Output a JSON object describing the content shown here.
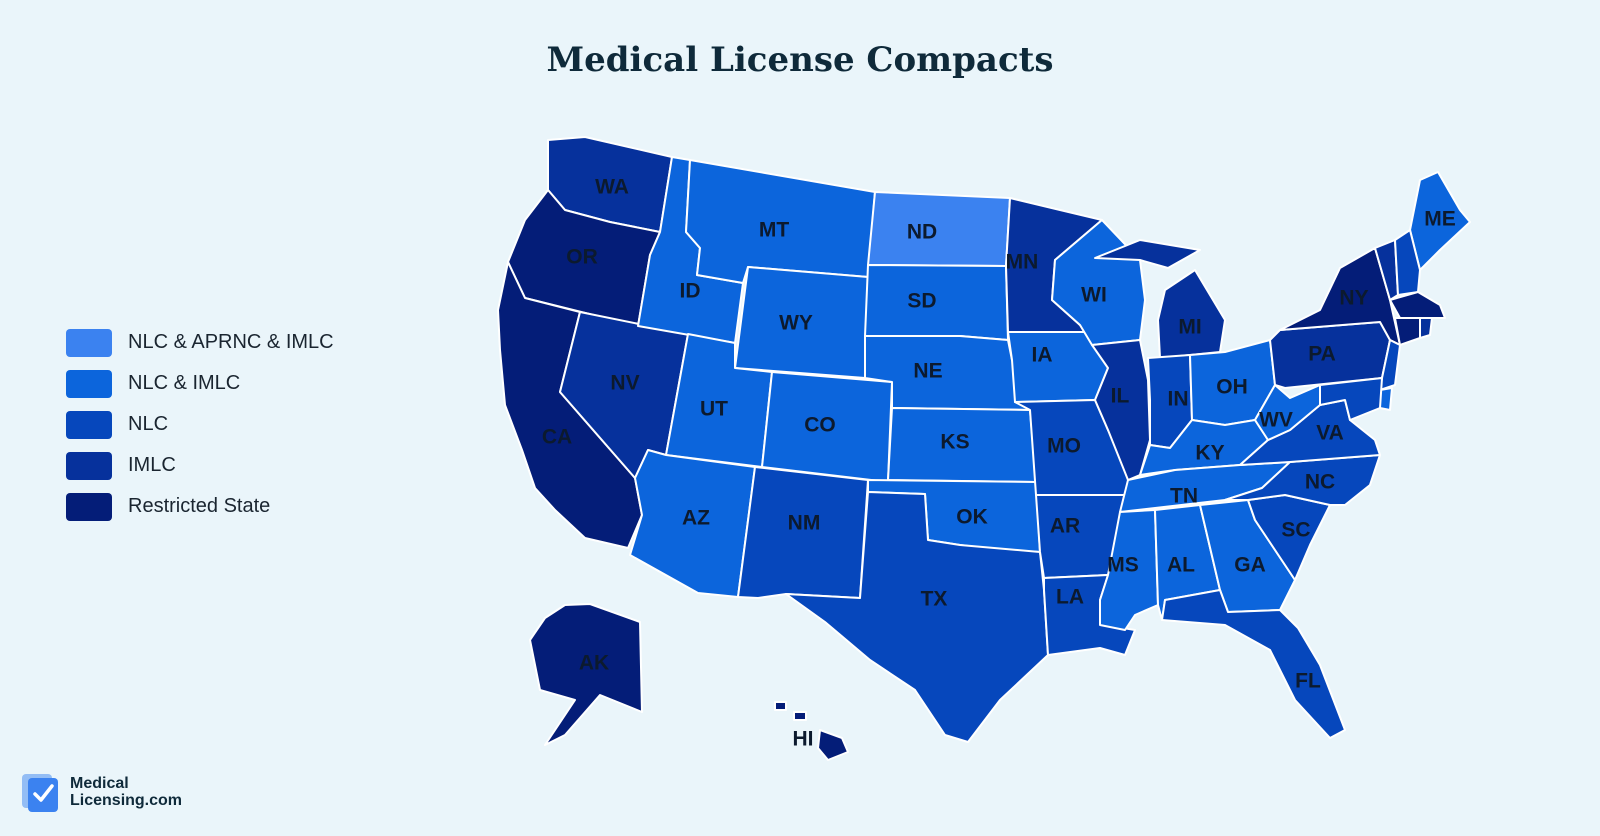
{
  "title": "Medical License Compacts",
  "legend": [
    {
      "label": "NLC & APRNC & IMLC",
      "color": "#3b82f0"
    },
    {
      "label": "NLC & IMLC",
      "color": "#0c65dc"
    },
    {
      "label": "NLC",
      "color": "#0647bc"
    },
    {
      "label": "IMLC",
      "color": "#06319c"
    },
    {
      "label": "Restricted State",
      "color": "#041d78"
    }
  ],
  "states": [
    {
      "code": "WA",
      "category": 3
    },
    {
      "code": "OR",
      "category": 4
    },
    {
      "code": "CA",
      "category": 4
    },
    {
      "code": "NV",
      "category": 3
    },
    {
      "code": "ID",
      "category": 1
    },
    {
      "code": "MT",
      "category": 1
    },
    {
      "code": "WY",
      "category": 1
    },
    {
      "code": "UT",
      "category": 1
    },
    {
      "code": "AZ",
      "category": 1
    },
    {
      "code": "CO",
      "category": 1
    },
    {
      "code": "NM",
      "category": 2
    },
    {
      "code": "ND",
      "category": 0
    },
    {
      "code": "SD",
      "category": 1
    },
    {
      "code": "NE",
      "category": 1
    },
    {
      "code": "KS",
      "category": 1
    },
    {
      "code": "OK",
      "category": 1
    },
    {
      "code": "TX",
      "category": 2
    },
    {
      "code": "MN",
      "category": 3
    },
    {
      "code": "IA",
      "category": 1
    },
    {
      "code": "MO",
      "category": 2
    },
    {
      "code": "AR",
      "category": 2
    },
    {
      "code": "LA",
      "category": 2
    },
    {
      "code": "WI",
      "category": 1
    },
    {
      "code": "IL",
      "category": 3
    },
    {
      "code": "MI",
      "category": 3
    },
    {
      "code": "IN",
      "category": 2
    },
    {
      "code": "OH",
      "category": 1
    },
    {
      "code": "KY",
      "category": 1
    },
    {
      "code": "TN",
      "category": 1
    },
    {
      "code": "MS",
      "category": 1
    },
    {
      "code": "AL",
      "category": 1
    },
    {
      "code": "GA",
      "category": 1
    },
    {
      "code": "FL",
      "category": 2
    },
    {
      "code": "SC",
      "category": 2
    },
    {
      "code": "NC",
      "category": 2
    },
    {
      "code": "VA",
      "category": 2
    },
    {
      "code": "WV",
      "category": 1
    },
    {
      "code": "PA",
      "category": 3
    },
    {
      "code": "NY",
      "category": 4
    },
    {
      "code": "ME",
      "category": 1
    },
    {
      "code": "AK",
      "category": 4
    },
    {
      "code": "HI",
      "category": 4
    }
  ],
  "logo": {
    "line1": "Medical",
    "line2": "Licensing.com",
    "color": "#3b82f0"
  }
}
